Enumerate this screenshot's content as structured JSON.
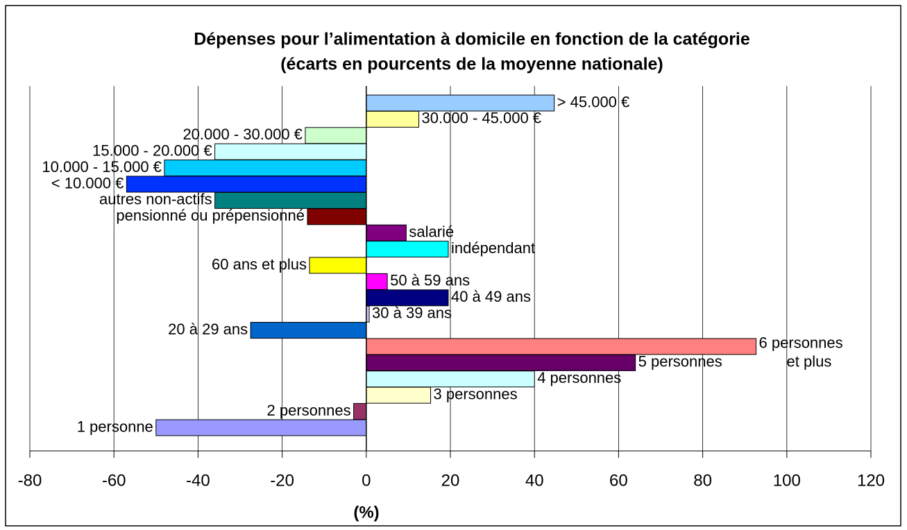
{
  "chart_data": {
    "type": "bar",
    "orientation": "horizontal",
    "title": "Dépenses pour l’alimentation à domicile en fonction de la catégorie",
    "subtitle": "(écarts en pourcents de la moyenne nationale)",
    "x_label": "(%)",
    "categories": [
      "> 45.000 €",
      "30.000 - 45.000 €",
      "20.000 - 30.000 €",
      "15.000 - 20.000 €",
      "10.000 - 15.000 €",
      "< 10.000 €",
      "autres non-actifs",
      "pensionné ou prépensionné",
      "salarié",
      "indépendant",
      "60 ans et plus",
      "50 à 59 ans",
      "40 à 49 ans",
      "30 à 39 ans",
      "20 à 29 ans",
      "6 personnes\net plus",
      "5 personnes",
      "4 personnes",
      "3 personnes",
      "2 personnes",
      "1 personne"
    ],
    "values": [
      44.7,
      12.5,
      -14.5,
      -36,
      -48,
      -57,
      -36,
      -14,
      9.5,
      19.5,
      -13.5,
      5,
      19.5,
      0.7,
      -27.5,
      92.7,
      64,
      40,
      15.3,
      -3,
      -50
    ],
    "colors": [
      "#99ccff",
      "#ffff99",
      "#ccffcc",
      "#ccffff",
      "#00ccff",
      "#0033ff",
      "#008080",
      "#800000",
      "#800080",
      "#00ffff",
      "#ffff00",
      "#ff00ff",
      "#000080",
      "#ccccff",
      "#0066cc",
      "#ff8080",
      "#660066",
      "#ccffff",
      "#ffffcc",
      "#993366",
      "#9999ff"
    ],
    "xlim": [
      -80,
      120
    ],
    "xticks": [
      -80,
      -60,
      -40,
      -20,
      0,
      20,
      40,
      60,
      80,
      100,
      120
    ],
    "grid": true
  }
}
